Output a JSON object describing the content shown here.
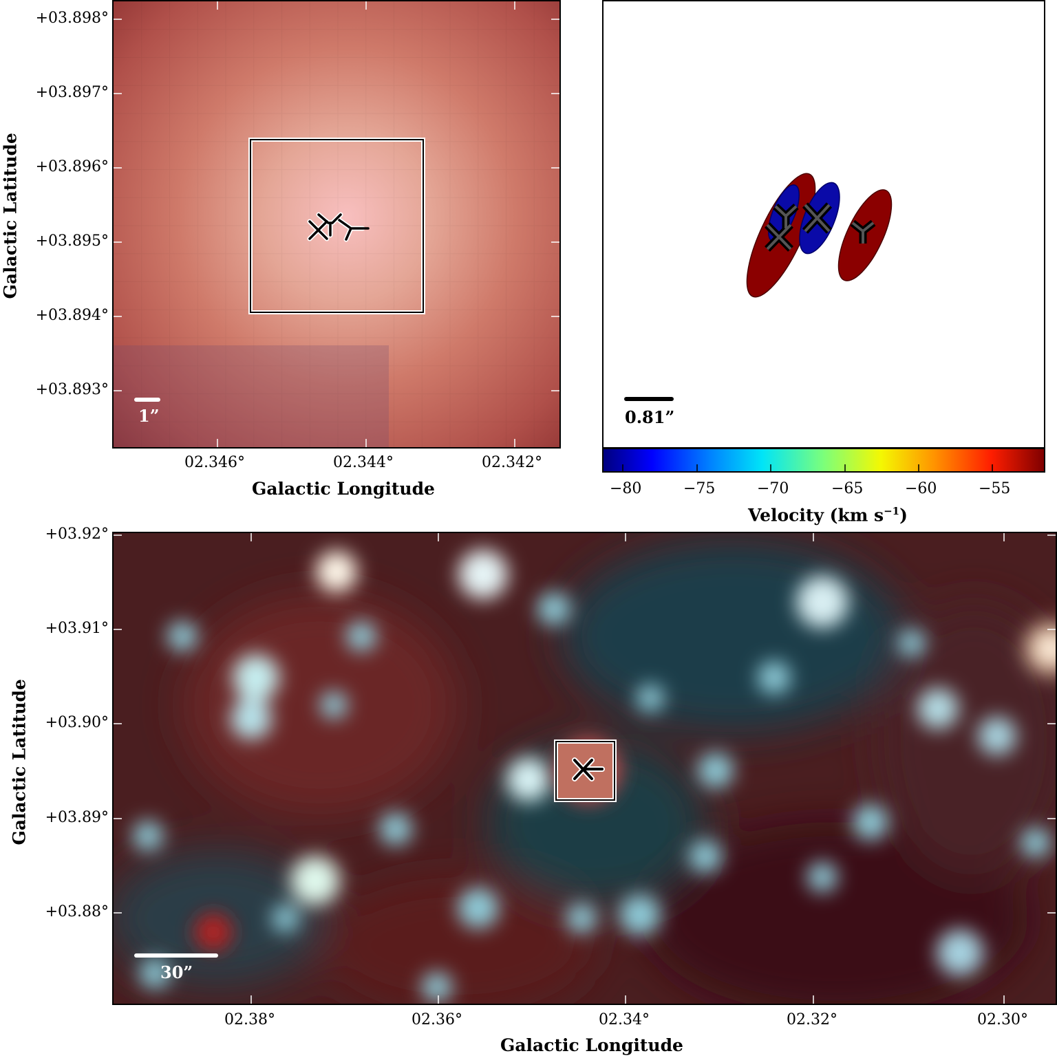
{
  "top_left": {
    "y_ticks": [
      "+03.898°",
      "+03.897°",
      "+03.896°",
      "+03.895°",
      "+03.894°",
      "+03.893°"
    ],
    "x_ticks": [
      "02.346°",
      "02.344°",
      "02.342°"
    ],
    "x_title": "Galactic Longitude",
    "y_title": "Galactic Latitude",
    "scale_label": "1”"
  },
  "top_right": {
    "scale_label": "0.81”",
    "colorbar_ticks": [
      "−80",
      "−75",
      "−70",
      "−65",
      "−60",
      "−55"
    ],
    "colorbar_title": "Velocity (km s",
    "colorbar_title_sup": "−1",
    "colorbar_title_end": ")",
    "sources": [
      {
        "marker": "x",
        "velocity_km_s": -53
      },
      {
        "marker": "y",
        "velocity_km_s": -80
      },
      {
        "marker": "x",
        "velocity_km_s": -80
      },
      {
        "marker": "y",
        "velocity_km_s": -53
      }
    ]
  },
  "bottom": {
    "y_ticks": [
      "+03.92°",
      "+03.91°",
      "+03.90°",
      "+03.89°",
      "+03.88°"
    ],
    "x_ticks": [
      "02.38°",
      "02.36°",
      "02.34°",
      "02.32°",
      "02.30°"
    ],
    "x_title": "Galactic Longitude",
    "y_title": "Galactic Latitude",
    "scale_label": "30”"
  },
  "colors": {
    "red_ellipse": "#8b0000",
    "blue_ellipse": "#0000a8",
    "image_red": "#7a2a2a",
    "image_cyan": "#8fd0dc"
  }
}
